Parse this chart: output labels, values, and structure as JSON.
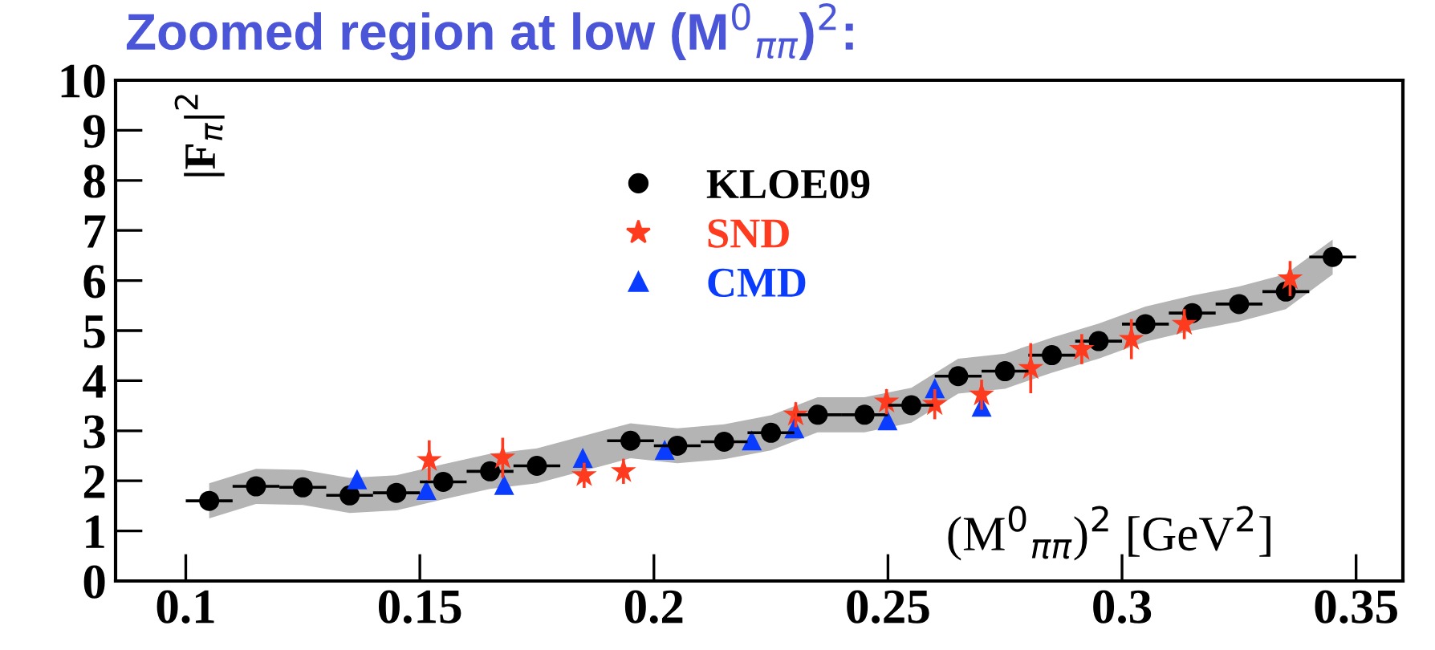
{
  "chart_data": {
    "type": "scatter",
    "title": "Zoomed region at low (M$^{0}$$_{ππ}$)$^{2}$:",
    "xlabel": "(M$^{0}$$_{ππ}$)$^{2}$ [GeV$^{2}$]",
    "ylabel": "|F$_{π}$|$^{2}$",
    "xlim": [
      0.085,
      0.36
    ],
    "xticks": [
      0.1,
      0.15,
      0.2,
      0.25,
      0.3,
      0.35
    ],
    "ylim": [
      0,
      10
    ],
    "yticks": [
      0,
      1,
      2,
      3,
      4,
      5,
      6,
      7,
      8,
      9,
      10
    ],
    "grid": false,
    "legend": "top",
    "series": [
      {
        "name": "KLOE09",
        "color": "#000000",
        "marker": "circle",
        "x": [
          0.105,
          0.115,
          0.125,
          0.135,
          0.145,
          0.155,
          0.165,
          0.175,
          0.195,
          0.205,
          0.215,
          0.225,
          0.235,
          0.245,
          0.255,
          0.265,
          0.275,
          0.285,
          0.295,
          0.305,
          0.315,
          0.325,
          0.335,
          0.345
        ],
        "values": [
          1.6,
          1.89,
          1.87,
          1.71,
          1.76,
          1.98,
          2.19,
          2.3,
          2.8,
          2.7,
          2.78,
          2.96,
          3.32,
          3.32,
          3.51,
          4.09,
          4.19,
          4.51,
          4.79,
          5.13,
          5.35,
          5.53,
          5.78,
          6.47
        ],
        "xerrors": [
          0.005,
          0.005,
          0.005,
          0.005,
          0.005,
          0.005,
          0.005,
          0.005,
          0.005,
          0.005,
          0.005,
          0.005,
          0.005,
          0.005,
          0.005,
          0.005,
          0.005,
          0.005,
          0.005,
          0.005,
          0.005,
          0.005,
          0.005,
          0.005
        ],
        "lower": [
          1.25,
          1.54,
          1.52,
          1.36,
          1.41,
          1.63,
          1.84,
          1.95,
          2.45,
          2.35,
          2.43,
          2.61,
          2.97,
          2.97,
          3.16,
          3.74,
          3.84,
          4.16,
          4.44,
          4.78,
          5.0,
          5.18,
          5.43,
          6.12
        ],
        "upper": [
          1.95,
          2.24,
          2.22,
          2.06,
          2.11,
          2.33,
          2.54,
          2.65,
          3.15,
          3.05,
          3.13,
          3.31,
          3.67,
          3.67,
          3.86,
          4.44,
          4.54,
          4.86,
          5.14,
          5.48,
          5.7,
          5.88,
          6.13,
          6.82
        ]
      },
      {
        "name": "SND",
        "color": "#ff3b1f",
        "marker": "star",
        "x": [
          0.152,
          0.1677,
          0.1851,
          0.1935,
          0.2303,
          0.2497,
          0.26,
          0.27,
          0.2805,
          0.2914,
          0.302,
          0.3133,
          0.3359
        ],
        "values": [
          2.41,
          2.46,
          2.11,
          2.19,
          3.32,
          3.58,
          3.53,
          3.72,
          4.25,
          4.63,
          4.83,
          5.13,
          6.04
        ],
        "errors": [
          0.4,
          0.4,
          0.25,
          0.25,
          0.25,
          0.25,
          0.3,
          0.3,
          0.5,
          0.3,
          0.4,
          0.3,
          0.35
        ]
      },
      {
        "name": "CMD",
        "color": "#0a3cff",
        "marker": "triangle",
        "x": [
          0.1366,
          0.1514,
          0.168,
          0.1848,
          0.2023,
          0.2209,
          0.23,
          0.2499,
          0.26,
          0.27
        ],
        "values": [
          2.03,
          1.82,
          1.92,
          2.46,
          2.62,
          2.81,
          3.05,
          3.21,
          3.85,
          3.48
        ]
      }
    ]
  }
}
